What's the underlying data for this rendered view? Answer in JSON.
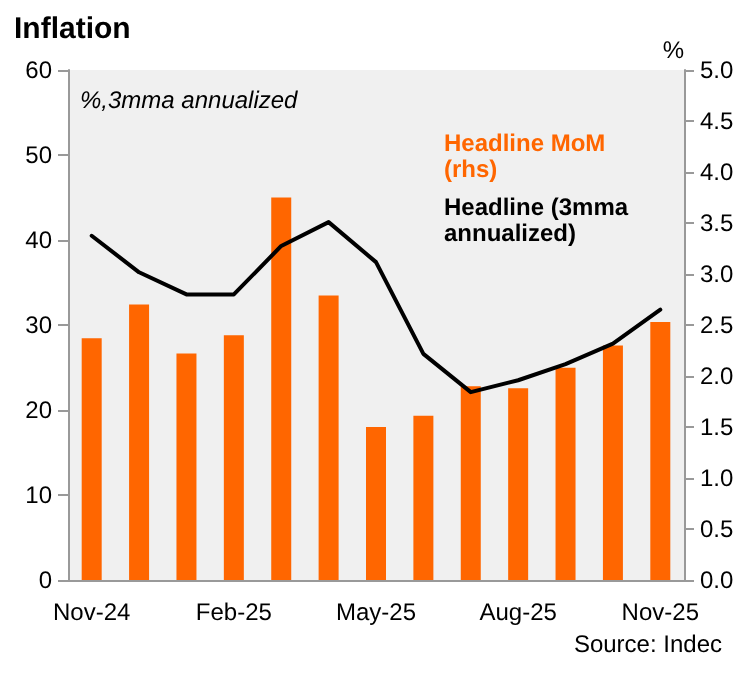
{
  "chart_data": {
    "type": "bar",
    "title": "Inflation",
    "y2label": "%",
    "annotations": [
      "%,3mma annualized",
      "Source: Indec"
    ],
    "categories": [
      "Nov-24",
      null,
      null,
      "Feb-25",
      null,
      null,
      "May-25",
      null,
      null,
      "Aug-25",
      null,
      null,
      "Nov-25"
    ],
    "series": [
      {
        "name": "Headline MoM (rhs)",
        "axis": "y2",
        "color": "#ff6600",
        "values": [
          2.37,
          2.7,
          2.22,
          2.4,
          3.75,
          2.79,
          1.5,
          1.61,
          1.9,
          1.88,
          2.08,
          2.3,
          2.53
        ]
      },
      {
        "name": "Headline (3mma annualized)",
        "type": "line",
        "color": "#000000",
        "marker": "none",
        "line_style": "solid",
        "values": [
          40.5,
          36.2,
          33.6,
          33.6,
          39.3,
          42.1,
          37.4,
          26.6,
          22.1,
          23.5,
          25.4,
          27.8,
          31.8
        ]
      }
    ],
    "ylim": [
      0,
      60
    ],
    "yticks": [
      0,
      10,
      20,
      30,
      40,
      50,
      60
    ],
    "y2lim": [
      0,
      5
    ],
    "y2ticks": [
      {
        "value": 0,
        "label": "0.0"
      },
      0.5,
      {
        "value": 1,
        "label": "1.0"
      },
      1.5,
      {
        "value": 2,
        "label": "2.0"
      },
      2.5,
      {
        "value": 3,
        "label": "3.0"
      },
      3.5,
      {
        "value": 4,
        "label": "4.0"
      },
      4.5,
      {
        "value": 5,
        "label": "5.0"
      }
    ],
    "grid": false,
    "legend": "top right"
  }
}
